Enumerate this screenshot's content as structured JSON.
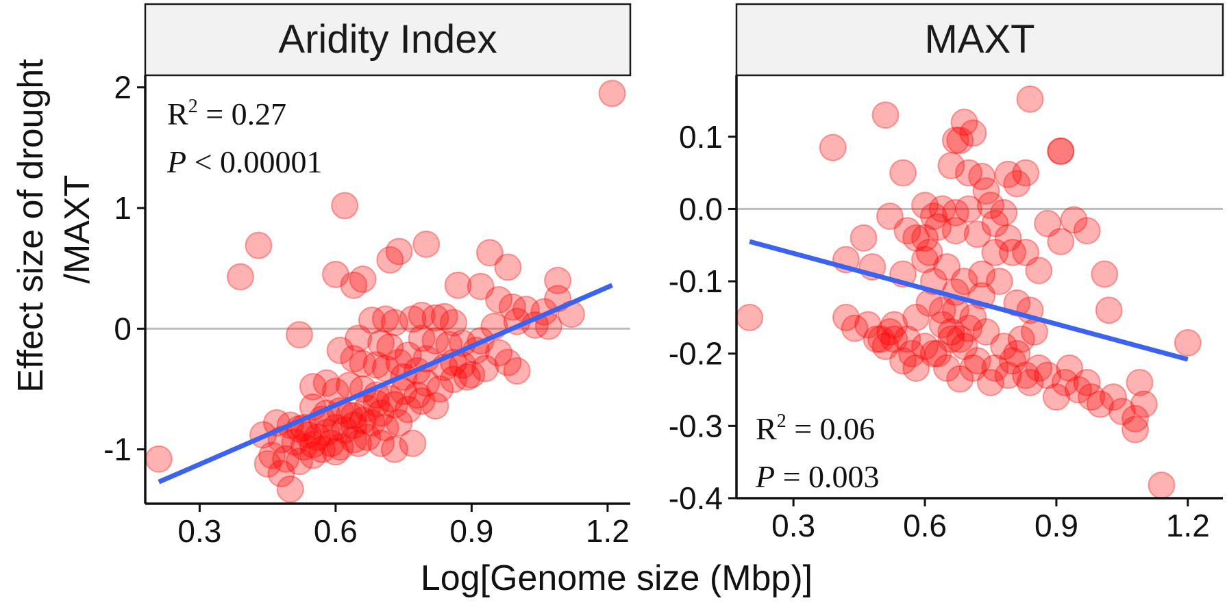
{
  "figure": {
    "ylabel_line1": "Effect size of drought",
    "ylabel_line2": "/MAXT",
    "xlabel": "Log[Genome size (Mbp)]"
  },
  "chart_data": [
    {
      "type": "scatter",
      "panel_title": "Aridity Index",
      "xlim": [
        0.18,
        1.25
      ],
      "ylim": [
        -1.45,
        2.1
      ],
      "x_ticks": [
        0.3,
        0.6,
        0.9,
        1.2
      ],
      "x_tick_labels": [
        "0.3",
        "0.6",
        "0.9",
        "1.2"
      ],
      "y_ticks": [
        -1,
        0,
        1,
        2
      ],
      "y_tick_labels": [
        "-1",
        "0",
        "1",
        "2"
      ],
      "reference_line_y": 0,
      "point_color": "#ff0000",
      "fit_color": "#3b63ef",
      "reference_color": "#bdbdbd",
      "fit_line": {
        "x": [
          0.21,
          1.21
        ],
        "y": [
          -1.27,
          0.36
        ]
      },
      "stats": {
        "r2_label": "R",
        "r2_sup": "2",
        "r2_value": " = 0.27",
        "p_label": "P",
        "p_value": " < 0.00001"
      },
      "points": [
        [
          0.21,
          -1.08
        ],
        [
          1.21,
          1.95
        ],
        [
          0.39,
          0.43
        ],
        [
          0.43,
          0.69
        ],
        [
          0.62,
          1.02
        ],
        [
          0.6,
          0.45
        ],
        [
          0.64,
          0.36
        ],
        [
          0.66,
          0.41
        ],
        [
          0.72,
          0.57
        ],
        [
          0.74,
          0.64
        ],
        [
          0.8,
          0.7
        ],
        [
          0.94,
          0.63
        ],
        [
          0.98,
          0.51
        ],
        [
          0.87,
          0.36
        ],
        [
          0.92,
          0.35
        ],
        [
          1.09,
          0.4
        ],
        [
          0.96,
          0.24
        ],
        [
          0.99,
          0.18
        ],
        [
          1.02,
          0.16
        ],
        [
          1.06,
          0.14
        ],
        [
          1.12,
          0.12
        ],
        [
          1.09,
          0.25
        ],
        [
          0.68,
          0.07
        ],
        [
          0.71,
          0.08
        ],
        [
          0.73,
          0.05
        ],
        [
          0.77,
          0.08
        ],
        [
          0.79,
          0.11
        ],
        [
          0.82,
          0.09
        ],
        [
          0.84,
          0.1
        ],
        [
          0.86,
          0.05
        ],
        [
          0.95,
          0.02
        ],
        [
          1.0,
          0.06
        ],
        [
          1.04,
          0.03
        ],
        [
          1.07,
          0.02
        ],
        [
          0.52,
          -0.05
        ],
        [
          0.79,
          -0.08
        ],
        [
          0.82,
          -0.1
        ],
        [
          0.85,
          -0.13
        ],
        [
          0.92,
          -0.1
        ],
        [
          0.61,
          -0.18
        ],
        [
          0.64,
          -0.25
        ],
        [
          0.66,
          -0.29
        ],
        [
          0.69,
          -0.3
        ],
        [
          0.71,
          -0.33
        ],
        [
          0.74,
          -0.28
        ],
        [
          0.76,
          -0.22
        ],
        [
          0.8,
          -0.25
        ],
        [
          0.84,
          -0.32
        ],
        [
          0.88,
          -0.3
        ],
        [
          0.9,
          -0.38
        ],
        [
          0.93,
          -0.33
        ],
        [
          0.96,
          -0.2
        ],
        [
          0.98,
          -0.28
        ],
        [
          1.0,
          -0.35
        ],
        [
          0.55,
          -0.48
        ],
        [
          0.58,
          -0.45
        ],
        [
          0.6,
          -0.52
        ],
        [
          0.63,
          -0.47
        ],
        [
          0.66,
          -0.5
        ],
        [
          0.69,
          -0.55
        ],
        [
          0.72,
          -0.58
        ],
        [
          0.75,
          -0.52
        ],
        [
          0.78,
          -0.55
        ],
        [
          0.8,
          -0.45
        ],
        [
          0.83,
          -0.5
        ],
        [
          0.86,
          -0.42
        ],
        [
          0.89,
          -0.4
        ],
        [
          0.55,
          -0.65
        ],
        [
          0.58,
          -0.7
        ],
        [
          0.61,
          -0.68
        ],
        [
          0.64,
          -0.72
        ],
        [
          0.67,
          -0.66
        ],
        [
          0.7,
          -0.7
        ],
        [
          0.73,
          -0.63
        ],
        [
          0.76,
          -0.67
        ],
        [
          0.79,
          -0.6
        ],
        [
          0.82,
          -0.64
        ],
        [
          0.47,
          -0.78
        ],
        [
          0.5,
          -0.8
        ],
        [
          0.52,
          -0.83
        ],
        [
          0.54,
          -0.88
        ],
        [
          0.56,
          -0.9
        ],
        [
          0.58,
          -0.86
        ],
        [
          0.6,
          -0.82
        ],
        [
          0.62,
          -0.84
        ],
        [
          0.64,
          -0.8
        ],
        [
          0.66,
          -0.76
        ],
        [
          0.68,
          -0.78
        ],
        [
          0.71,
          -0.82
        ],
        [
          0.74,
          -0.78
        ],
        [
          0.44,
          -0.88
        ],
        [
          0.48,
          -0.92
        ],
        [
          0.51,
          -0.94
        ],
        [
          0.53,
          -0.98
        ],
        [
          0.55,
          -0.96
        ],
        [
          0.57,
          -1.0
        ],
        [
          0.59,
          -0.95
        ],
        [
          0.61,
          -0.98
        ],
        [
          0.64,
          -0.92
        ],
        [
          0.67,
          -0.9
        ],
        [
          0.7,
          -0.95
        ],
        [
          0.73,
          -1.0
        ],
        [
          0.77,
          -0.95
        ],
        [
          0.46,
          -1.05
        ],
        [
          0.49,
          -1.08
        ],
        [
          0.52,
          -1.1
        ],
        [
          0.55,
          -1.05
        ],
        [
          0.6,
          -1.02
        ],
        [
          0.65,
          -0.95
        ],
        [
          0.45,
          -1.12
        ],
        [
          0.48,
          -1.2
        ],
        [
          0.5,
          -1.33
        ],
        [
          0.53,
          -0.82
        ],
        [
          0.57,
          -0.75
        ],
        [
          0.63,
          -0.72
        ],
        [
          0.69,
          -0.62
        ],
        [
          0.75,
          -0.4
        ],
        [
          0.78,
          -0.35
        ],
        [
          0.72,
          -0.15
        ],
        [
          0.65,
          -0.08
        ],
        [
          0.7,
          -0.12
        ],
        [
          0.88,
          -0.12
        ],
        [
          0.86,
          -0.28
        ],
        [
          0.91,
          -0.18
        ]
      ]
    },
    {
      "type": "scatter",
      "panel_title": "MAXT",
      "xlim": [
        0.17,
        1.28
      ],
      "ylim": [
        -0.4,
        0.185
      ],
      "x_ticks": [
        0.3,
        0.6,
        0.9,
        1.2
      ],
      "x_tick_labels": [
        "0.3",
        "0.6",
        "0.9",
        "1.2"
      ],
      "y_ticks": [
        -0.4,
        -0.3,
        -0.2,
        -0.1,
        0.0,
        0.1
      ],
      "y_tick_labels": [
        "-0.4",
        "-0.3",
        "-0.2",
        "-0.1",
        "0.0",
        "0.1"
      ],
      "reference_line_y": 0,
      "point_color": "#ff0000",
      "fit_color": "#3b63ef",
      "reference_color": "#bdbdbd",
      "fit_line": {
        "x": [
          0.2,
          1.2
        ],
        "y": [
          -0.045,
          -0.208
        ]
      },
      "stats": {
        "r2_label": "R",
        "r2_sup": "2",
        "r2_value": " = 0.06",
        "p_label": "P",
        "p_value": " = 0.003"
      },
      "points": [
        [
          0.2,
          -0.15
        ],
        [
          0.39,
          0.085
        ],
        [
          0.51,
          0.13
        ],
        [
          0.55,
          0.05
        ],
        [
          0.84,
          0.152
        ],
        [
          0.91,
          0.08
        ],
        [
          0.91,
          0.08
        ],
        [
          0.69,
          0.12
        ],
        [
          0.71,
          0.105
        ],
        [
          0.68,
          0.095
        ],
        [
          0.67,
          0.095
        ],
        [
          0.66,
          0.06
        ],
        [
          0.7,
          0.05
        ],
        [
          0.73,
          0.045
        ],
        [
          0.79,
          0.048
        ],
        [
          0.83,
          0.05
        ],
        [
          0.81,
          0.035
        ],
        [
          0.74,
          0.025
        ],
        [
          0.6,
          0.005
        ],
        [
          0.64,
          0.0
        ],
        [
          0.67,
          -0.005
        ],
        [
          0.7,
          0.0
        ],
        [
          0.75,
          0.005
        ],
        [
          0.78,
          -0.005
        ],
        [
          0.62,
          -0.01
        ],
        [
          0.46,
          -0.04
        ],
        [
          0.52,
          -0.01
        ],
        [
          0.56,
          -0.03
        ],
        [
          0.6,
          -0.04
        ],
        [
          0.63,
          -0.025
        ],
        [
          0.67,
          -0.03
        ],
        [
          0.72,
          -0.035
        ],
        [
          0.76,
          -0.02
        ],
        [
          0.79,
          -0.04
        ],
        [
          0.83,
          -0.06
        ],
        [
          0.86,
          -0.085
        ],
        [
          0.88,
          -0.02
        ],
        [
          0.91,
          -0.045
        ],
        [
          0.94,
          -0.015
        ],
        [
          0.97,
          -0.03
        ],
        [
          0.42,
          -0.07
        ],
        [
          0.48,
          -0.08
        ],
        [
          0.55,
          -0.09
        ],
        [
          0.6,
          -0.07
        ],
        [
          0.62,
          -0.1
        ],
        [
          0.65,
          -0.08
        ],
        [
          0.69,
          -0.1
        ],
        [
          0.73,
          -0.12
        ],
        [
          0.77,
          -0.1
        ],
        [
          0.81,
          -0.13
        ],
        [
          0.84,
          -0.14
        ],
        [
          1.01,
          -0.09
        ],
        [
          1.02,
          -0.14
        ],
        [
          0.42,
          -0.15
        ],
        [
          0.47,
          -0.16
        ],
        [
          0.52,
          -0.17
        ],
        [
          0.56,
          -0.18
        ],
        [
          0.58,
          -0.15
        ],
        [
          0.61,
          -0.13
        ],
        [
          0.64,
          -0.16
        ],
        [
          0.67,
          -0.14
        ],
        [
          0.71,
          -0.15
        ],
        [
          0.74,
          -0.17
        ],
        [
          0.78,
          -0.19
        ],
        [
          0.81,
          -0.2
        ],
        [
          0.85,
          -0.17
        ],
        [
          0.44,
          -0.165
        ],
        [
          0.49,
          -0.18
        ],
        [
          0.51,
          -0.19
        ],
        [
          0.53,
          -0.18
        ],
        [
          0.57,
          -0.2
        ],
        [
          0.6,
          -0.19
        ],
        [
          0.63,
          -0.2
        ],
        [
          0.66,
          -0.18
        ],
        [
          0.69,
          -0.19
        ],
        [
          0.72,
          -0.21
        ],
        [
          0.76,
          -0.22
        ],
        [
          0.8,
          -0.21
        ],
        [
          0.83,
          -0.23
        ],
        [
          0.86,
          -0.22
        ],
        [
          0.55,
          -0.21
        ],
        [
          0.58,
          -0.22
        ],
        [
          0.62,
          -0.2
        ],
        [
          0.65,
          -0.22
        ],
        [
          0.68,
          -0.235
        ],
        [
          0.71,
          -0.22
        ],
        [
          0.75,
          -0.24
        ],
        [
          0.79,
          -0.23
        ],
        [
          0.84,
          -0.24
        ],
        [
          0.88,
          -0.23
        ],
        [
          0.92,
          -0.24
        ],
        [
          0.95,
          -0.25
        ],
        [
          0.98,
          -0.26
        ],
        [
          1.0,
          -0.27
        ],
        [
          1.03,
          -0.26
        ],
        [
          1.05,
          -0.28
        ],
        [
          1.08,
          -0.29
        ],
        [
          1.09,
          -0.24
        ],
        [
          1.1,
          -0.27
        ],
        [
          1.08,
          -0.305
        ],
        [
          1.14,
          -0.382
        ],
        [
          1.2,
          -0.185
        ],
        [
          0.66,
          -0.17
        ],
        [
          0.68,
          -0.18
        ],
        [
          0.7,
          -0.165
        ],
        [
          0.64,
          -0.14
        ],
        [
          0.67,
          -0.115
        ],
        [
          0.61,
          -0.06
        ],
        [
          0.58,
          -0.04
        ],
        [
          0.53,
          -0.16
        ],
        [
          0.5,
          -0.18
        ],
        [
          0.9,
          -0.26
        ],
        [
          0.93,
          -0.22
        ],
        [
          0.97,
          -0.24
        ],
        [
          0.73,
          -0.09
        ],
        [
          0.76,
          -0.06
        ],
        [
          0.8,
          -0.06
        ],
        [
          0.82,
          -0.18
        ]
      ]
    }
  ]
}
